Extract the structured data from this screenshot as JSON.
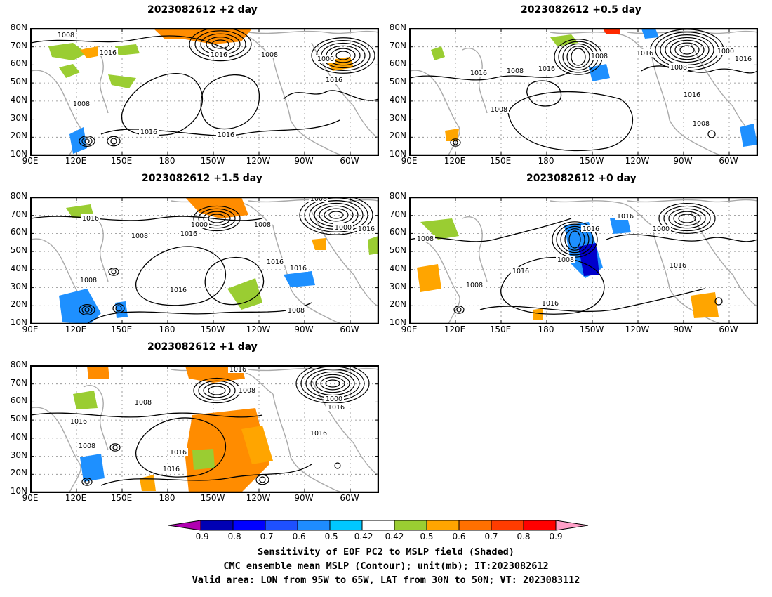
{
  "panels": [
    {
      "id": "p1",
      "title": "2023082612 +2 day"
    },
    {
      "id": "p2",
      "title": "2023082612 +0.5 day"
    },
    {
      "id": "p3",
      "title": "2023082612 +1.5 day"
    },
    {
      "id": "p4",
      "title": "2023082612 +0 day"
    },
    {
      "id": "p5",
      "title": "2023082612 +1 day"
    }
  ],
  "lat_ticks": [
    "80N",
    "70N",
    "60N",
    "50N",
    "40N",
    "30N",
    "20N",
    "10N"
  ],
  "lon_ticks": [
    "90E",
    "120E",
    "150E",
    "180",
    "150W",
    "120W",
    "90W",
    "60W"
  ],
  "contour_labels": [
    "1000",
    "1008",
    "1016"
  ],
  "colorbar": {
    "ticks": [
      "-0.9",
      "-0.8",
      "-0.7",
      "-0.6",
      "-0.5",
      "-0.42",
      "0.42",
      "0.5",
      "0.6",
      "0.7",
      "0.8",
      "0.9"
    ],
    "colors": [
      "#b000b0",
      "#0000b4",
      "#0000ff",
      "#1e50ff",
      "#1e8cff",
      "#00c8ff",
      "#ffffff",
      "#9acd32",
      "#ffa500",
      "#ff7000",
      "#ff3c00",
      "#ff0000",
      "#ffa0c8"
    ]
  },
  "captions": [
    "Sensitivity of EOF PC2 to MSLP field (Shaded)",
    "CMC ensemble mean MSLP (Contour); unit(mb); IT:2023082612",
    "Valid area: LON from 95W to 65W, LAT from 30N to 50N; VT: 2023083112"
  ]
}
